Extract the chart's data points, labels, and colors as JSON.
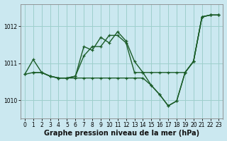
{
  "xlabel": "Graphe pression niveau de la mer (hPa)",
  "bg_color": "#cbe8f0",
  "grid_color": "#9ecfcc",
  "line_color": "#1a5c28",
  "xlim": [
    -0.5,
    23.5
  ],
  "ylim": [
    1009.5,
    1012.6
  ],
  "xticks": [
    0,
    1,
    2,
    3,
    4,
    5,
    6,
    7,
    8,
    9,
    10,
    11,
    12,
    13,
    14,
    15,
    16,
    17,
    18,
    19,
    20,
    21,
    22,
    23
  ],
  "yticks": [
    1010,
    1011,
    1012
  ],
  "series": [
    {
      "x": [
        0,
        1,
        2,
        3,
        4,
        5,
        6,
        7,
        8,
        9,
        10,
        11,
        12,
        13,
        14,
        15,
        16,
        17,
        18,
        19,
        20,
        21,
        22,
        23
      ],
      "y": [
        1010.7,
        1011.1,
        1010.75,
        1010.65,
        1010.6,
        1010.6,
        1010.65,
        1011.45,
        1011.35,
        1011.7,
        1011.55,
        1011.85,
        1011.6,
        1011.05,
        1010.75,
        1010.4,
        1010.15,
        1009.85,
        1009.98,
        1010.75,
        1011.05,
        1012.25,
        1012.3,
        1012.3
      ]
    },
    {
      "x": [
        1,
        2,
        3,
        4,
        5,
        6,
        7,
        8,
        9,
        10,
        11,
        12,
        13,
        14,
        15,
        16,
        17,
        18,
        19,
        20,
        21,
        22,
        23
      ],
      "y": [
        1010.75,
        1010.75,
        1010.65,
        1010.6,
        1010.6,
        1010.65,
        1011.2,
        1011.45,
        1011.45,
        1011.75,
        1011.75,
        1011.55,
        1010.75,
        1010.75,
        1010.75,
        1010.75,
        1010.75,
        1010.75,
        1010.75,
        1011.05,
        1012.25,
        1012.3,
        1012.3
      ]
    },
    {
      "x": [
        0,
        1,
        2,
        3,
        4,
        5,
        6,
        7,
        8,
        9,
        10,
        11,
        12,
        13,
        14,
        15,
        16,
        17,
        18,
        19,
        20,
        21,
        22,
        23
      ],
      "y": [
        1010.7,
        1010.75,
        1010.75,
        1010.65,
        1010.6,
        1010.6,
        1010.6,
        1010.6,
        1010.6,
        1010.6,
        1010.6,
        1010.6,
        1010.6,
        1010.6,
        1010.6,
        1010.4,
        1010.15,
        1009.85,
        1009.98,
        1010.75,
        1011.05,
        1012.25,
        1012.3,
        1012.3
      ]
    }
  ],
  "marker_size": 3.5,
  "line_width": 1.0,
  "xlabel_fontsize": 7,
  "tick_fontsize": 5.5
}
